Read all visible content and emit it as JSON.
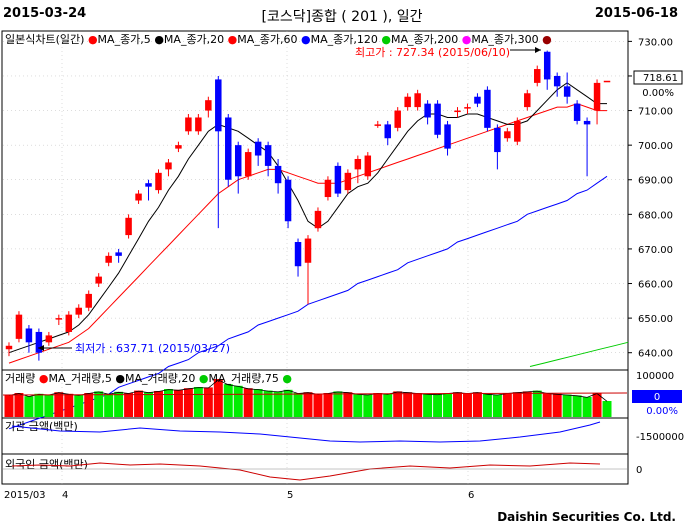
{
  "header": {
    "start_date": "2015-03-24",
    "title": "[코스닥]종합 ( 201 ), 일간",
    "end_date": "2015-06-18"
  },
  "footer": {
    "brand": "Daishin Securities Co. Ltd."
  },
  "colors": {
    "up": "#ff0000",
    "down": "#0000ff",
    "volume_up": "#ff0000",
    "volume_down": "#00ee00",
    "ma5": "#000000",
    "ma20": "#ff0000",
    "ma120": "#0000ff",
    "ma200": "#00cc00"
  },
  "price_panel": {
    "legend": [
      {
        "label": "일본식차트(일간)",
        "color": "#000000"
      },
      {
        "label": "MA_종가,5",
        "color": "#ff0000"
      },
      {
        "label": "MA_종가,20",
        "color": "#000000"
      },
      {
        "label": "MA_종가,60",
        "color": "#ff0000"
      },
      {
        "label": "MA_종가,120",
        "color": "#0000ff"
      },
      {
        "label": "MA_종가,200",
        "color": "#00cc00"
      },
      {
        "label": "MA_종가,300",
        "color": "#ff00ff"
      }
    ],
    "high_label": "최고가 : 727.34 (2015/06/10)",
    "low_label": "최저가 : 637.71 (2015/03/27)",
    "y_ticks": [
      "730.00",
      "720.00",
      "710.00",
      "700.00",
      "690.00",
      "680.00",
      "670.00",
      "660.00",
      "650.00",
      "640.00"
    ],
    "last_price": "718.61",
    "change": "0.00%"
  },
  "volume_panel": {
    "legend": [
      {
        "label": "거래량",
        "color": "#000000"
      },
      {
        "label": "MA_거래량,5",
        "color": "#ff0000"
      },
      {
        "label": "MA_거래량,20",
        "color": "#000000"
      },
      {
        "label": "MA_거래량,75",
        "color": "#00cc00"
      }
    ],
    "y_tick": "100000",
    "last_value": "0",
    "change": "0.00%"
  },
  "foreign_panel": {
    "label": "기관 금액(백만)",
    "y_tick": "-1500000"
  },
  "inst_panel": {
    "label": "외국인 금액(백만)",
    "y_tick": "0"
  },
  "x_axis": {
    "labels": [
      "2015/03",
      "4",
      "5",
      "6"
    ]
  },
  "chart_data": {
    "type": "candlestick",
    "x_axis_labels": [
      "2015/03",
      "4",
      "5",
      "6"
    ],
    "ylim": [
      635,
      733
    ],
    "high_point": {
      "value": 727.34,
      "date": "2015/06/10"
    },
    "low_point": {
      "value": 637.71,
      "date": "2015/03/27"
    },
    "candles": [
      {
        "o": 641,
        "c": 642,
        "h": 643,
        "l": 639
      },
      {
        "o": 644,
        "c": 651,
        "h": 652,
        "l": 643
      },
      {
        "o": 647,
        "c": 643,
        "h": 648,
        "l": 640
      },
      {
        "o": 646,
        "c": 640,
        "h": 647,
        "l": 637.71
      },
      {
        "o": 643,
        "c": 645,
        "h": 646,
        "l": 642
      },
      {
        "o": 650,
        "c": 650,
        "h": 651,
        "l": 648
      },
      {
        "o": 646,
        "c": 651,
        "h": 652,
        "l": 645
      },
      {
        "o": 651,
        "c": 653,
        "h": 654,
        "l": 650
      },
      {
        "o": 653,
        "c": 657,
        "h": 658,
        "l": 652
      },
      {
        "o": 660,
        "c": 662,
        "h": 663,
        "l": 659
      },
      {
        "o": 666,
        "c": 668,
        "h": 669,
        "l": 665
      },
      {
        "o": 669,
        "c": 668,
        "h": 670,
        "l": 666
      },
      {
        "o": 674,
        "c": 679,
        "h": 680,
        "l": 673
      },
      {
        "o": 684,
        "c": 686,
        "h": 687,
        "l": 683
      },
      {
        "o": 689,
        "c": 688,
        "h": 690,
        "l": 684
      },
      {
        "o": 687,
        "c": 692,
        "h": 693,
        "l": 686
      },
      {
        "o": 693,
        "c": 695,
        "h": 696,
        "l": 691
      },
      {
        "o": 699,
        "c": 700,
        "h": 701,
        "l": 698
      },
      {
        "o": 704,
        "c": 708,
        "h": 709,
        "l": 703
      },
      {
        "o": 704,
        "c": 708,
        "h": 709,
        "l": 703
      },
      {
        "o": 710,
        "c": 713,
        "h": 714,
        "l": 708
      },
      {
        "o": 719,
        "c": 704,
        "h": 720,
        "l": 676
      },
      {
        "o": 708,
        "c": 690,
        "h": 709,
        "l": 688
      },
      {
        "o": 700,
        "c": 691,
        "h": 701,
        "l": 686
      },
      {
        "o": 691,
        "c": 698,
        "h": 699,
        "l": 690
      },
      {
        "o": 701,
        "c": 697,
        "h": 702,
        "l": 694
      },
      {
        "o": 700,
        "c": 694,
        "h": 701,
        "l": 691
      },
      {
        "o": 694,
        "c": 689,
        "h": 696,
        "l": 686
      },
      {
        "o": 690,
        "c": 678,
        "h": 691,
        "l": 676
      },
      {
        "o": 672,
        "c": 665,
        "h": 673,
        "l": 662
      },
      {
        "o": 666,
        "c": 673,
        "h": 674,
        "l": 654
      },
      {
        "o": 676,
        "c": 681,
        "h": 682,
        "l": 675
      },
      {
        "o": 685,
        "c": 690,
        "h": 691,
        "l": 684
      },
      {
        "o": 694,
        "c": 686,
        "h": 695,
        "l": 685
      },
      {
        "o": 687,
        "c": 692,
        "h": 693,
        "l": 686
      },
      {
        "o": 693,
        "c": 696,
        "h": 697,
        "l": 689
      },
      {
        "o": 691,
        "c": 697,
        "h": 698,
        "l": 690
      },
      {
        "o": 706,
        "c": 706,
        "h": 707,
        "l": 705
      },
      {
        "o": 706,
        "c": 702,
        "h": 707,
        "l": 700
      },
      {
        "o": 705,
        "c": 710,
        "h": 711,
        "l": 704
      },
      {
        "o": 711,
        "c": 714,
        "h": 715,
        "l": 710
      },
      {
        "o": 711,
        "c": 715,
        "h": 716,
        "l": 710
      },
      {
        "o": 712,
        "c": 708,
        "h": 713,
        "l": 706
      },
      {
        "o": 712,
        "c": 703,
        "h": 713,
        "l": 702
      },
      {
        "o": 706,
        "c": 699,
        "h": 707,
        "l": 697
      },
      {
        "o": 710,
        "c": 710,
        "h": 711,
        "l": 708
      },
      {
        "o": 711,
        "c": 711,
        "h": 712,
        "l": 709
      },
      {
        "o": 714,
        "c": 712,
        "h": 715,
        "l": 711
      },
      {
        "o": 716,
        "c": 705,
        "h": 717,
        "l": 704
      },
      {
        "o": 705,
        "c": 698,
        "h": 706,
        "l": 693
      },
      {
        "o": 702,
        "c": 704,
        "h": 705,
        "l": 701
      },
      {
        "o": 701,
        "c": 707,
        "h": 708,
        "l": 700
      },
      {
        "o": 711,
        "c": 715,
        "h": 716,
        "l": 710
      },
      {
        "o": 718,
        "c": 722,
        "h": 723,
        "l": 717
      },
      {
        "o": 727,
        "c": 719,
        "h": 727.34,
        "l": 716
      },
      {
        "o": 720,
        "c": 717,
        "h": 721,
        "l": 714
      },
      {
        "o": 717,
        "c": 714,
        "h": 721,
        "l": 712
      },
      {
        "o": 712,
        "c": 707,
        "h": 713,
        "l": 706
      },
      {
        "o": 707,
        "c": 706,
        "h": 708,
        "l": 691
      },
      {
        "o": 710,
        "c": 718,
        "h": 719,
        "l": 706
      },
      {
        "o": 718.61,
        "c": 718.61,
        "h": 718.61,
        "l": 718.61
      }
    ],
    "ma20": [
      637,
      638,
      639,
      640,
      641,
      642,
      643,
      645,
      647,
      650,
      653,
      656,
      659,
      662,
      665,
      668,
      671,
      674,
      677,
      680,
      683,
      686,
      688,
      690,
      691,
      692,
      693,
      693,
      692,
      691,
      690,
      689,
      689,
      689,
      690,
      691,
      692,
      693,
      694,
      695,
      696,
      697,
      698,
      699,
      700,
      701,
      702,
      703,
      704,
      705,
      706,
      707,
      708,
      709,
      710,
      711,
      711,
      712,
      711,
      710,
      710
    ],
    "ma5": [
      640,
      641,
      642,
      643,
      644,
      645,
      646,
      648,
      651,
      655,
      659,
      663,
      668,
      673,
      678,
      682,
      687,
      691,
      696,
      700,
      704,
      706,
      705,
      704,
      702,
      700,
      698,
      694,
      689,
      684,
      678,
      676,
      678,
      682,
      686,
      688,
      689,
      692,
      696,
      700,
      704,
      707,
      709,
      709,
      708,
      708,
      709,
      709,
      708,
      707,
      706,
      706,
      707,
      710,
      713,
      716,
      718,
      716,
      714,
      712,
      712
    ],
    "ma120": [
      618,
      619,
      620,
      621,
      622,
      623,
      624,
      625,
      626,
      627,
      628,
      630,
      631,
      632,
      633,
      634,
      636,
      637,
      638,
      640,
      641,
      642,
      644,
      645,
      646,
      648,
      649,
      650,
      651,
      652,
      654,
      655,
      656,
      657,
      658,
      660,
      661,
      662,
      663,
      664,
      666,
      667,
      668,
      669,
      670,
      672,
      673,
      674,
      675,
      676,
      677,
      678,
      680,
      681,
      682,
      683,
      684,
      686,
      687,
      689,
      691
    ],
    "ma200_tail": [
      636,
      637,
      638,
      639,
      640,
      641,
      642,
      643
    ],
    "volume_up": [
      true,
      true,
      false,
      false,
      false,
      true,
      true,
      false,
      true,
      false,
      false,
      false,
      true,
      true,
      false,
      true,
      false,
      true,
      true,
      false,
      true,
      true,
      false,
      false,
      true,
      false,
      false,
      false,
      false,
      false,
      true,
      true,
      true,
      false,
      true,
      false,
      false,
      true,
      false,
      true,
      true,
      true,
      false,
      false,
      false,
      true,
      true,
      true,
      false,
      false,
      true,
      true,
      true,
      false,
      true,
      true,
      false,
      false,
      false,
      true,
      false
    ],
    "volume": [
      55,
      60,
      52,
      58,
      56,
      62,
      58,
      55,
      60,
      64,
      58,
      63,
      60,
      66,
      62,
      65,
      70,
      68,
      72,
      75,
      74,
      95,
      82,
      78,
      72,
      70,
      66,
      64,
      68,
      60,
      62,
      58,
      60,
      64,
      62,
      58,
      56,
      60,
      58,
      64,
      62,
      60,
      58,
      57,
      60,
      62,
      60,
      62,
      58,
      56,
      60,
      62,
      64,
      66,
      60,
      58,
      56,
      54,
      50,
      60,
      40
    ]
  }
}
